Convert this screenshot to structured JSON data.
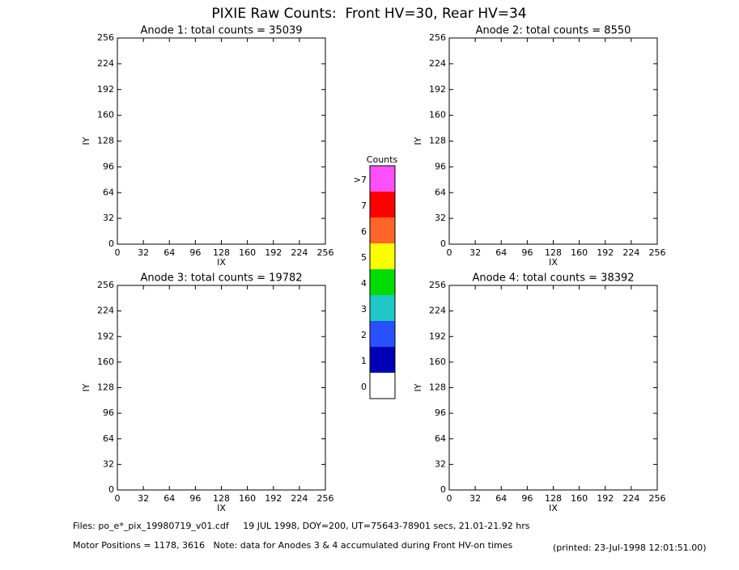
{
  "title": "PIXIE Raw Counts:  Front HV=30, Rear HV=34",
  "chart_data": [
    {
      "type": "heatmap",
      "title": "Anode 1: total counts = 35039",
      "xlabel": "IX",
      "ylabel": "IY",
      "xlim": [
        0,
        256
      ],
      "ylim": [
        0,
        256
      ],
      "xticks": [
        0,
        32,
        64,
        96,
        128,
        160,
        192,
        224,
        256
      ],
      "yticks": [
        0,
        32,
        64,
        96,
        128,
        160,
        192,
        224,
        256
      ]
    },
    {
      "type": "heatmap",
      "title": "Anode 2: total counts = 8550",
      "xlabel": "IX",
      "ylabel": "IY",
      "xlim": [
        0,
        256
      ],
      "ylim": [
        0,
        256
      ],
      "xticks": [
        0,
        32,
        64,
        96,
        128,
        160,
        192,
        224,
        256
      ],
      "yticks": [
        0,
        32,
        64,
        96,
        128,
        160,
        192,
        224,
        256
      ]
    },
    {
      "type": "heatmap",
      "title": "Anode 3: total counts = 19782",
      "xlabel": "IX",
      "ylabel": "IY",
      "xlim": [
        0,
        256
      ],
      "ylim": [
        0,
        256
      ],
      "xticks": [
        0,
        32,
        64,
        96,
        128,
        160,
        192,
        224,
        256
      ],
      "yticks": [
        0,
        32,
        64,
        96,
        128,
        160,
        192,
        224,
        256
      ]
    },
    {
      "type": "heatmap",
      "title": "Anode 4: total counts = 38392",
      "xlabel": "IX",
      "ylabel": "IY",
      "xlim": [
        0,
        256
      ],
      "ylim": [
        0,
        256
      ],
      "xticks": [
        0,
        32,
        64,
        96,
        128,
        160,
        192,
        224,
        256
      ],
      "yticks": [
        0,
        32,
        64,
        96,
        128,
        160,
        192,
        224,
        256
      ]
    }
  ],
  "colorbar": {
    "title": "Counts",
    "labels": [
      "0",
      "1",
      "2",
      "3",
      "4",
      "5",
      "6",
      "7",
      ">7"
    ],
    "colors": [
      "#ffffff",
      "#0000b4",
      "#2850ff",
      "#1ec8c8",
      "#00dc00",
      "#ffff00",
      "#ff6428",
      "#ff0000",
      "#ff50ff"
    ]
  },
  "footer": {
    "files": "Files: po_e*_pix_19980719_v01.cdf     19 JUL 1998, DOY=200, UT=75643-78901 secs, 21.01-21.92 hrs",
    "motor": "Motor Positions = 1178, 3616   Note: data for Anodes 3 & 4 accumulated during Front HV-on times",
    "printed": "(printed: 23-Jul-1998 12:01:51.00)"
  }
}
